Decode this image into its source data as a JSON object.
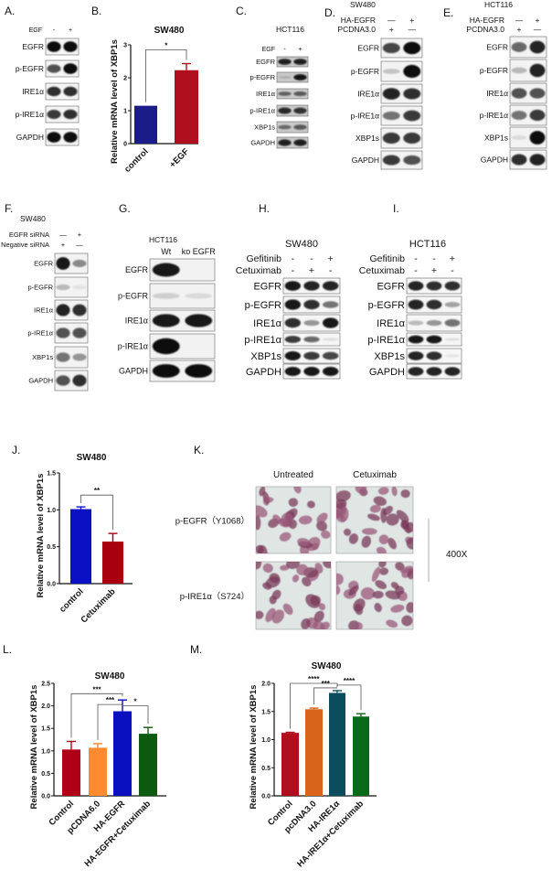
{
  "panel_letters": [
    "A.",
    "B.",
    "C.",
    "D.",
    "E.",
    "F.",
    "G.",
    "H.",
    "I.",
    "J.",
    "K.",
    "L.",
    "M."
  ],
  "blots": {
    "A": {
      "title": "",
      "conditions": [
        {
          "label": "EGF",
          "marks": [
            "-",
            "+"
          ]
        }
      ],
      "rows": [
        {
          "label": "EGFR",
          "bands": [
            1,
            1
          ]
        },
        {
          "label": "p-EGFR",
          "bands": [
            0.7,
            1
          ]
        },
        {
          "label": "IRE1α",
          "bands": [
            0.85,
            0.85
          ]
        },
        {
          "label": "p-IRE1α",
          "bands": [
            0.8,
            0.85
          ]
        },
        {
          "label": "GAPDH",
          "bands": [
            1,
            1
          ]
        }
      ]
    },
    "C": {
      "title": "HCT116",
      "conditions": [
        {
          "label": "EGF",
          "marks": [
            "-",
            "+"
          ]
        }
      ],
      "rows": [
        {
          "label": "EGFR",
          "bands": [
            0.9,
            0.9
          ]
        },
        {
          "label": "p-EGFR",
          "bands": [
            0.1,
            0.95
          ]
        },
        {
          "label": "IRE1α",
          "bands": [
            0.5,
            0.6
          ]
        },
        {
          "label": "p-IRE1α",
          "bands": [
            0.85,
            0.8
          ]
        },
        {
          "label": "XBP1s",
          "bands": [
            0.45,
            0.6
          ]
        },
        {
          "label": "GAPDH",
          "bands": [
            0.9,
            0.9
          ]
        }
      ]
    },
    "D": {
      "title": "SW480",
      "conditions": [
        {
          "label": "HA-EGFR",
          "marks": [
            "—",
            "+"
          ]
        },
        {
          "label": "PCDNA3.0",
          "marks": [
            "+",
            "—"
          ]
        }
      ],
      "rows": [
        {
          "label": "EGFR",
          "bands": [
            0.75,
            1
          ]
        },
        {
          "label": "p-EGFR",
          "bands": [
            0.15,
            1
          ]
        },
        {
          "label": "IRE1α",
          "bands": [
            0.9,
            0.85
          ]
        },
        {
          "label": "p-IRE1α",
          "bands": [
            0.55,
            0.8
          ]
        },
        {
          "label": "XBP1s",
          "bands": [
            0.8,
            0.8
          ]
        },
        {
          "label": "GAPDH",
          "bands": [
            0.8,
            0.7
          ]
        }
      ]
    },
    "E": {
      "title": "HCT116",
      "conditions": [
        {
          "label": "HA-EGFR",
          "marks": [
            "—",
            "+"
          ]
        },
        {
          "label": "PCDNA3.0",
          "marks": [
            "+",
            "—"
          ]
        }
      ],
      "rows": [
        {
          "label": "EGFR",
          "bands": [
            0.6,
            0.9
          ]
        },
        {
          "label": "p-EGFR",
          "bands": [
            0.2,
            0.9
          ]
        },
        {
          "label": "IRE1α",
          "bands": [
            0.7,
            0.7
          ]
        },
        {
          "label": "p-IRE1α",
          "bands": [
            0.55,
            0.8
          ]
        },
        {
          "label": "XBP1s",
          "bands": [
            0.05,
            1
          ]
        },
        {
          "label": "GAPDH",
          "bands": [
            0.85,
            0.9
          ]
        }
      ]
    },
    "F": {
      "title": "SW480",
      "conditions": [
        {
          "label": "EGFR siRNA",
          "marks": [
            "—",
            "+"
          ]
        },
        {
          "label": "Negative siRNA",
          "marks": [
            "+",
            "—"
          ]
        }
      ],
      "rows": [
        {
          "label": "EGFR",
          "bands": [
            0.95,
            0.4
          ]
        },
        {
          "label": "p-EGFR",
          "bands": [
            0.2,
            0.02
          ]
        },
        {
          "label": "IRE1α",
          "bands": [
            0.9,
            0.85
          ]
        },
        {
          "label": "p-IRE1α",
          "bands": [
            0.7,
            0.7
          ]
        },
        {
          "label": "XBP1s",
          "bands": [
            0.55,
            0.35
          ]
        },
        {
          "label": "GAPDH",
          "bands": [
            0.7,
            0.85
          ]
        }
      ]
    },
    "G": {
      "title": "HCT116",
      "conditions": [
        {
          "label": "",
          "marks": [
            "Wt",
            "ko EGFR"
          ]
        }
      ],
      "rows": [
        {
          "label": "EGFR",
          "bands": [
            0.95,
            0
          ]
        },
        {
          "label": "p-EGFR",
          "bands": [
            0.1,
            0.05
          ]
        },
        {
          "label": "IRE1α",
          "bands": [
            0.95,
            0.95
          ]
        },
        {
          "label": "p-IRE1α",
          "bands": [
            1,
            0
          ]
        },
        {
          "label": "GAPDH",
          "bands": [
            1,
            1
          ]
        }
      ]
    },
    "H": {
      "title": "SW480",
      "conditions": [
        {
          "label": "Gefitinib",
          "marks": [
            "-",
            "-",
            "+"
          ]
        },
        {
          "label": "Cetuximab",
          "marks": [
            "-",
            "+",
            "-"
          ]
        }
      ],
      "rows": [
        {
          "label": "EGFR",
          "bands": [
            0.95,
            0.9,
            0.9
          ]
        },
        {
          "label": "p-EGFR",
          "bands": [
            0.95,
            0.85,
            0.5
          ]
        },
        {
          "label": "IRE1α",
          "bands": [
            0.85,
            0.35,
            0.95
          ]
        },
        {
          "label": "p-IRE1α",
          "bands": [
            0.8,
            0.6,
            0.05
          ]
        },
        {
          "label": "XBP1s",
          "bands": [
            0.95,
            0.8,
            0.75
          ]
        },
        {
          "label": "GAPDH",
          "bands": [
            0.95,
            0.95,
            0.95
          ]
        }
      ]
    },
    "I": {
      "title": "HCT116",
      "conditions": [
        {
          "label": "Gefitinib",
          "marks": [
            "-",
            "-",
            "+"
          ]
        },
        {
          "label": "Cetuximab",
          "marks": [
            "-",
            "+",
            "-"
          ]
        }
      ],
      "rows": [
        {
          "label": "EGFR",
          "bands": [
            0.9,
            0.85,
            0.85
          ]
        },
        {
          "label": "p-EGFR",
          "bands": [
            0.9,
            0.85,
            0.3
          ]
        },
        {
          "label": "IRE1α",
          "bands": [
            0.2,
            0.35,
            0.55
          ]
        },
        {
          "label": "p-IRE1α",
          "bands": [
            0.95,
            0.95,
            0.05
          ]
        },
        {
          "label": "XBP1s",
          "bands": [
            0.9,
            0.85,
            0.02
          ]
        },
        {
          "label": "GAPDH",
          "bands": [
            0.9,
            0.9,
            0.9
          ]
        }
      ]
    }
  },
  "ihc": {
    "columns": [
      "Untreated",
      "Cetuximab"
    ],
    "rows": [
      "p-EGFR（Y1068）",
      "p-IRE1α（S724）"
    ],
    "magnification": "400X"
  },
  "chart_data": [
    {
      "panel": "B",
      "type": "bar",
      "title": "SW480",
      "xlabel": "",
      "ylabel": "Relative mRNA level of XBP1s",
      "categories": [
        "control",
        "+EGF"
      ],
      "values": [
        1.15,
        2.23
      ],
      "errors": [
        0,
        0.2
      ],
      "colors": [
        "#1b1b8a",
        "#b0101e"
      ],
      "ylim": [
        0,
        3
      ],
      "yticks": [
        "0",
        "1",
        "2",
        "3"
      ],
      "significance": [
        {
          "from": 0,
          "to": 1,
          "y": 2.85,
          "label": "*"
        }
      ]
    },
    {
      "panel": "J",
      "type": "bar",
      "title": "SW480",
      "xlabel": "",
      "ylabel": "Relative mRNA level of XBP1s",
      "categories": [
        "control",
        "Cetuximab"
      ],
      "values": [
        1.01,
        0.57
      ],
      "errors": [
        0.03,
        0.11
      ],
      "colors": [
        "#0a10c4",
        "#a8000f"
      ],
      "ylim": [
        0,
        1.5
      ],
      "yticks": [
        "0.0",
        "0.5",
        "1.0",
        "1.5"
      ],
      "significance": [
        {
          "from": 0,
          "to": 1,
          "y": 1.2,
          "label": "**"
        }
      ]
    },
    {
      "panel": "L",
      "type": "bar",
      "title": "SW480",
      "xlabel": "",
      "ylabel": "Relative mRNA level of XBP1s",
      "categories": [
        "Control",
        "pCDNA6.0",
        "HA-EGFR",
        "HA-EGFR+Cetuximab"
      ],
      "values": [
        1.03,
        1.07,
        1.88,
        1.38
      ],
      "errors": [
        0.18,
        0.09,
        0.25,
        0.14
      ],
      "colors": [
        "#b00018",
        "#ff8a30",
        "#0a10c0",
        "#0b5a10"
      ],
      "ylim": [
        0,
        2.5
      ],
      "yticks": [
        "0.0",
        "0.5",
        "1.0",
        "1.5",
        "2.0",
        "2.5"
      ],
      "significance": [
        {
          "from": 0,
          "to": 2,
          "y": 2.27,
          "label": "***"
        },
        {
          "from": 1,
          "to": 2,
          "y": 2.03,
          "label": "***"
        },
        {
          "from": 2,
          "to": 3,
          "y": 2.0,
          "label": "*"
        }
      ]
    },
    {
      "panel": "M",
      "type": "bar",
      "title": "SW480",
      "xlabel": "",
      "ylabel": "Relative mRNA level of XBP1s",
      "categories": [
        "Control",
        "pcDNA3.0",
        "HA-IRE1α",
        "HA-IRE1α+Cetuximab"
      ],
      "values": [
        1.12,
        1.54,
        1.83,
        1.41
      ],
      "errors": [
        0.01,
        0.02,
        0.04,
        0.05
      ],
      "colors": [
        "#b0101e",
        "#d8641c",
        "#0b4d5c",
        "#0b6a1a"
      ],
      "ylim": [
        0,
        2.0
      ],
      "yticks": [
        "0.0",
        "0.5",
        "1.0",
        "1.5",
        "2.0"
      ],
      "significance": [
        {
          "from": 0,
          "to": 2,
          "y": 2.0,
          "label": "****"
        },
        {
          "from": 1,
          "to": 2,
          "y": 1.92,
          "label": "***"
        },
        {
          "from": 2,
          "to": 3,
          "y": 1.97,
          "label": "****"
        }
      ]
    }
  ]
}
